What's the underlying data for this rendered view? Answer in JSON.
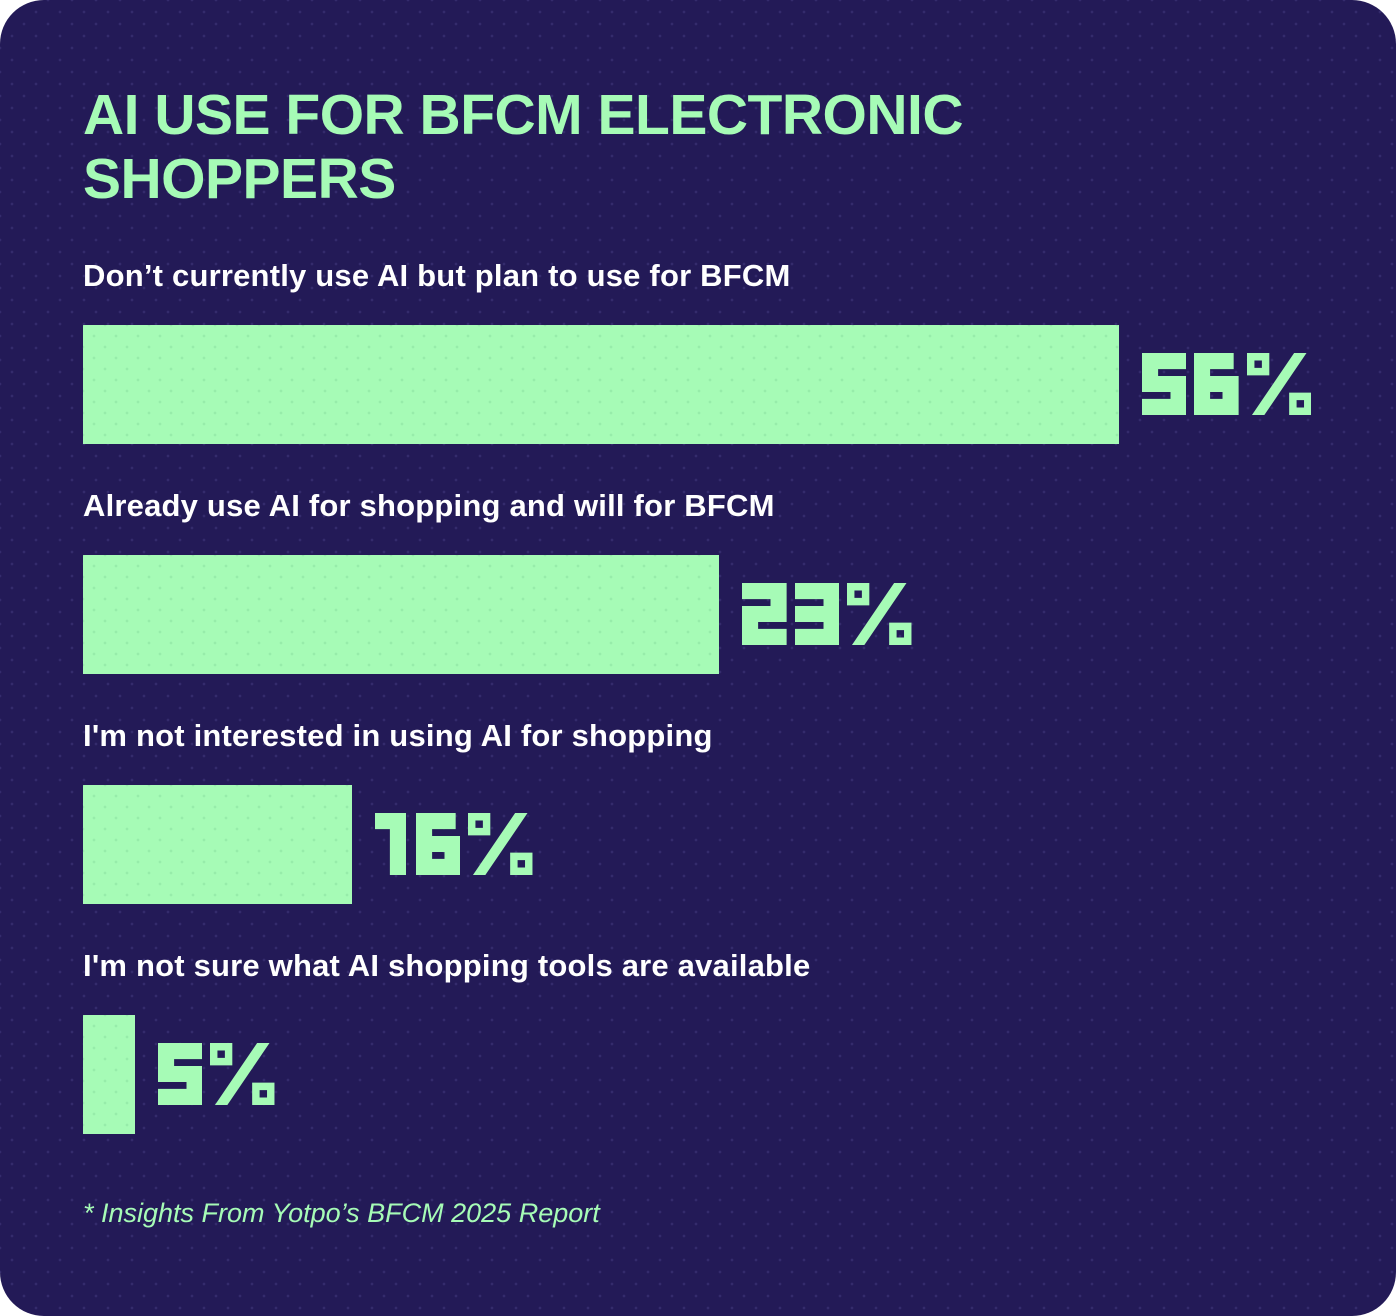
{
  "colors": {
    "background_navy": "#231A57",
    "accent_mint": "#A6FBB6",
    "label_white": "#FFFFFF"
  },
  "footnote": "* Insights From Yotpo’s BFCM 2025 Report",
  "chart_data": {
    "type": "bar",
    "orientation": "horizontal",
    "title": "AI USE FOR BFCM ELECTRONIC SHOPPERS",
    "categories": [
      "Don’t currently use AI but plan to use for BFCM",
      "Already use AI for shopping and will for BFCM",
      "I'm not interested in using AI for shopping",
      "I'm not sure what AI shopping tools are available"
    ],
    "values": [
      56,
      23,
      16,
      5
    ],
    "value_labels": [
      "56%",
      "23%",
      "16%",
      "5%"
    ],
    "unit": "%",
    "bar_display_width_pct": [
      84.2,
      51.7,
      21.9,
      4.2
    ],
    "bar_color": "#A6FBB6",
    "label_color": "#FFFFFF",
    "background": "#231A57",
    "grid": false,
    "legend": false,
    "axes_shown": false
  }
}
